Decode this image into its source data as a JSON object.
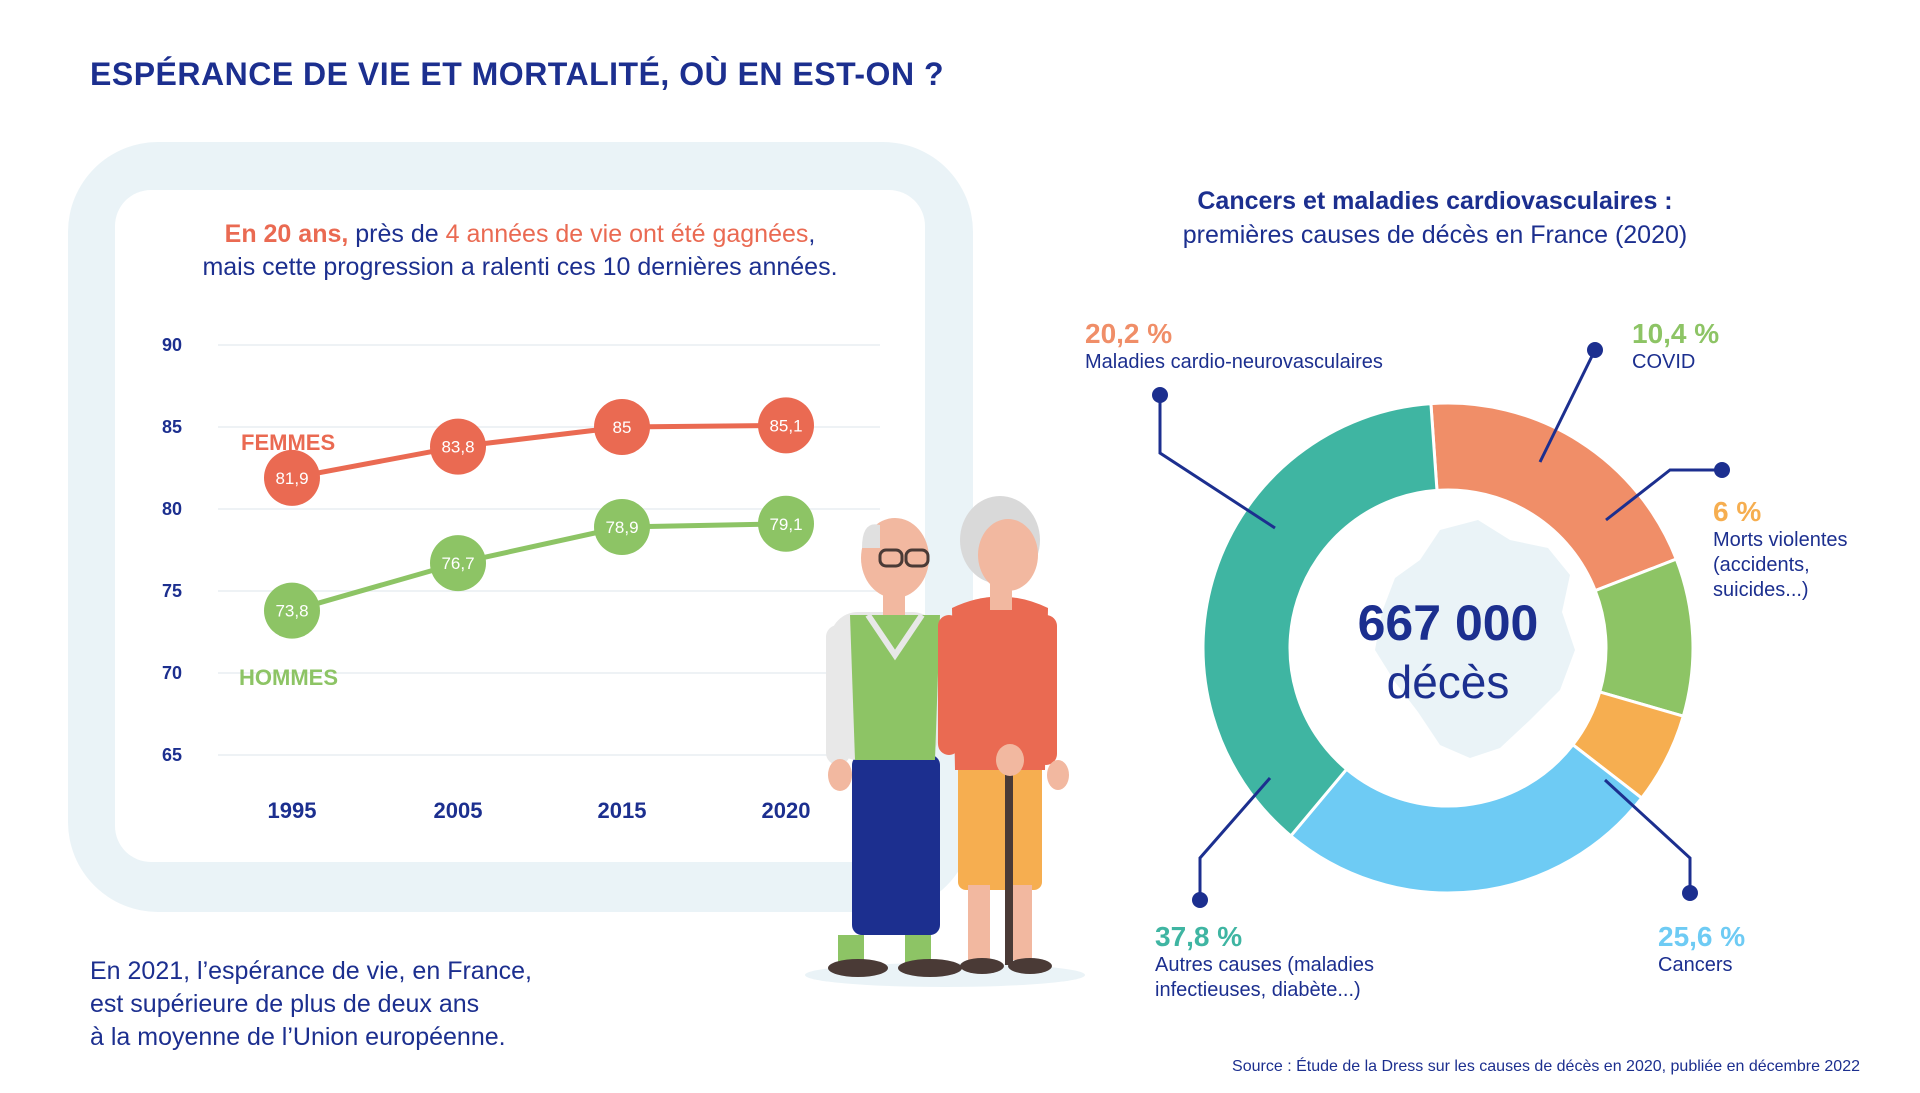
{
  "title": "ESPÉRANCE DE VIE ET MORTALITÉ, OÙ EN EST-ON ?",
  "headline": {
    "part1": "En 20 ans,",
    "part2": " près de ",
    "part3": "4 années de vie ont été gagnées",
    "part4": ",",
    "line2": "mais cette progression a ralenti ces 10 dernières années."
  },
  "chart_data": [
    {
      "type": "line",
      "categories": [
        "1995",
        "2005",
        "2015",
        "2020"
      ],
      "y_ticks": [
        "90",
        "85",
        "80",
        "75",
        "70",
        "65"
      ],
      "ylim": [
        65,
        90
      ],
      "grid": true,
      "series": [
        {
          "name": "FEMMES",
          "color": "#ea6a52",
          "values": [
            81.9,
            83.8,
            85,
            85.1
          ],
          "labels": [
            "81,9",
            "83,8",
            "85",
            "85,1"
          ]
        },
        {
          "name": "HOMMES",
          "color": "#8dc465",
          "values": [
            73.8,
            76.7,
            78.9,
            79.1
          ],
          "labels": [
            "73,8",
            "76,7",
            "78,9",
            "79,1"
          ]
        }
      ]
    },
    {
      "type": "pie",
      "title": "Cancers et maladies cardiovasculaires :",
      "subtitle": "premières causes de décès en France (2020)",
      "center_value": "667 000",
      "center_unit": "décès",
      "slices": [
        {
          "pct_label": "20,2 %",
          "value": 20.2,
          "label": "Maladies cardio-neurovasculaires",
          "color": "#f08e68"
        },
        {
          "pct_label": "10,4 %",
          "value": 10.4,
          "label": "COVID",
          "color": "#8dc465"
        },
        {
          "pct_label": "6 %",
          "value": 6,
          "label_lines": [
            "Morts violentes",
            "(accidents,",
            "suicides...)"
          ],
          "color": "#f6ae50"
        },
        {
          "pct_label": "25,6 %",
          "value": 25.6,
          "label": "Cancers",
          "color": "#6ecbf4"
        },
        {
          "pct_label": "37,8 %",
          "value": 37.8,
          "label_lines": [
            "Autres causes (maladies",
            "infectieuses, diabète...)"
          ],
          "color": "#3fb5a2"
        }
      ]
    }
  ],
  "bottom_text": [
    "En 2021, l’espérance de vie, en France,",
    "est supérieure de plus de deux ans",
    "à la moyenne de l’Union européenne."
  ],
  "source": "Source : Étude de la Dress sur les causes de décès en 2020, publiée en décembre 2022",
  "colors": {
    "navy": "#1c2f8f",
    "femmes": "#ea6a52",
    "hommes": "#8dc465",
    "panel": "#eaf3f7"
  }
}
